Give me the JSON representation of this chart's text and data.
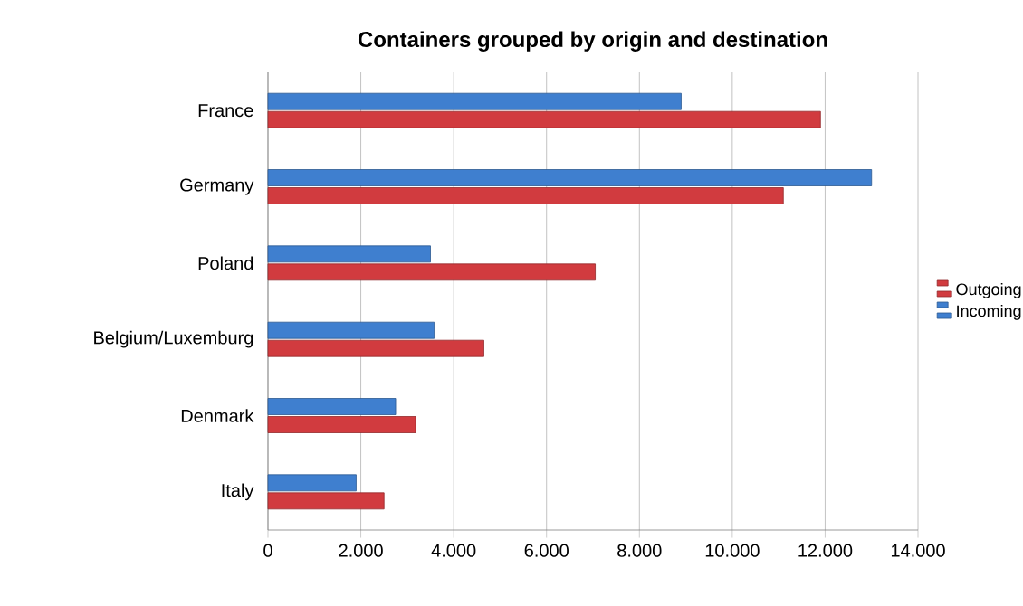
{
  "chart_data": {
    "type": "bar",
    "orientation": "horizontal",
    "title": "Containers grouped by origin and destination",
    "categories": [
      "France",
      "Germany",
      "Poland",
      "Belgium/Luxemburg",
      "Denmark",
      "Italy"
    ],
    "series": [
      {
        "name": "Outgoing",
        "color": "#d13b3f",
        "values": [
          11900,
          11100,
          7050,
          4650,
          3180,
          2500
        ]
      },
      {
        "name": "Incoming",
        "color": "#3f7fcf",
        "values": [
          8900,
          13000,
          3500,
          3580,
          2750,
          1900
        ]
      }
    ],
    "xlim": [
      0,
      14000
    ],
    "xticks": [
      0,
      {
        "value": 2000,
        "label": "2.000"
      },
      {
        "value": 4000,
        "label": "4.000"
      },
      {
        "value": 6000,
        "label": "6.000"
      },
      {
        "value": 8000,
        "label": "8.000"
      },
      {
        "value": 10000,
        "label": "10.000"
      },
      {
        "value": 12000,
        "label": "12.000"
      },
      {
        "value": 14000,
        "label": "14.000"
      }
    ],
    "grid": "x",
    "legend": "right"
  }
}
